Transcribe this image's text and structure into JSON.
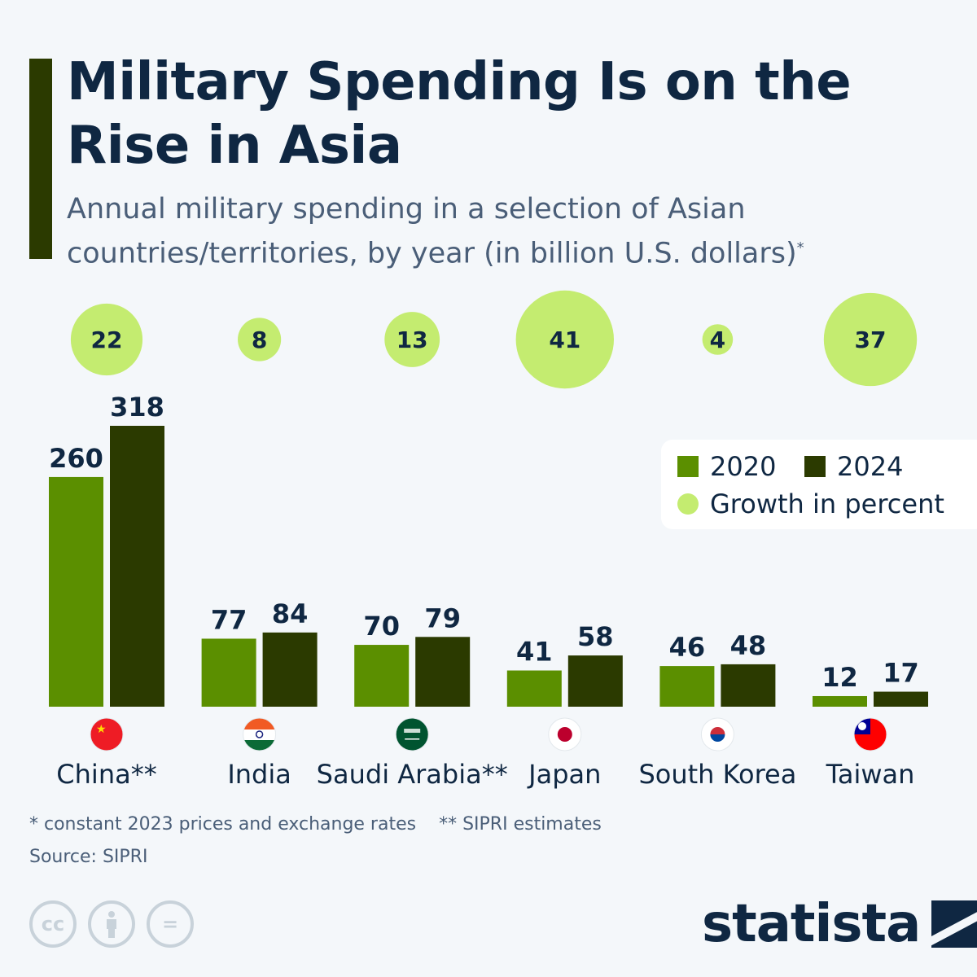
{
  "header": {
    "title": "Military Spending Is on the Rise in Asia",
    "subtitle": "Annual military spending in a selection of Asian countries/territories, by year (in billion U.S. dollars)",
    "subtitle_mark": "*"
  },
  "chart_data": {
    "type": "bar",
    "title": "Military Spending Is on the Rise in Asia",
    "ylabel": "",
    "categories": [
      "China**",
      "India",
      "Saudi Arabia**",
      "Japan",
      "South Korea",
      "Taiwan"
    ],
    "series": [
      {
        "name": "2020",
        "values": [
          260,
          77,
          70,
          41,
          46,
          12
        ],
        "color": "#5b8f00"
      },
      {
        "name": "2024",
        "values": [
          318,
          84,
          79,
          58,
          48,
          17
        ],
        "color": "#2b3a00"
      }
    ],
    "growth": {
      "name": "Growth in percent",
      "values": [
        22,
        8,
        13,
        41,
        4,
        37
      ],
      "color": "#c4ec70"
    },
    "ylim": [
      0,
      320
    ],
    "grid": false,
    "legend": "right",
    "flags": [
      "china-flag",
      "india-flag",
      "saudi-arabia-flag",
      "japan-flag",
      "south-korea-flag",
      "taiwan-flag"
    ]
  },
  "legend": {
    "s2020": "2020",
    "s2024": "2024",
    "growth": "Growth in percent"
  },
  "footer": {
    "note1": "* constant 2023 prices and exchange rates",
    "note2": "** SIPRI estimates",
    "source": "Source: SIPRI",
    "cc": "cc",
    "eq": "=",
    "brand": "statista"
  }
}
